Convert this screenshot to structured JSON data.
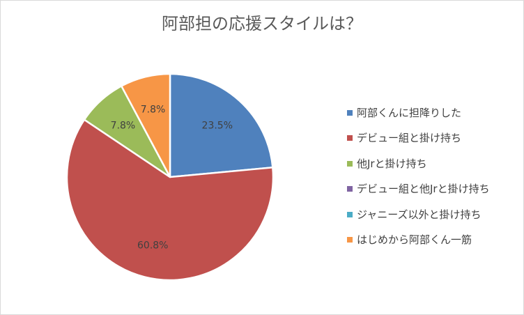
{
  "chart_data": {
    "type": "pie",
    "title": "阿部担の応援スタイルは？",
    "categories": [
      "阿部くんに担降りした",
      "デビュー組と掛け持ち",
      "他Jrと掛け持ち",
      "デビュー組と他Jrと掛け持ち",
      "ジャニーズ以外と掛け持ち",
      "はじめから阿部くん一筋"
    ],
    "values": [
      23.5,
      60.8,
      7.8,
      0,
      0,
      7.8
    ],
    "data_labels": [
      "23.5%",
      "60.8%",
      "7.8%",
      "",
      "",
      "7.8%"
    ],
    "colors": [
      "#4f81bd",
      "#c0504d",
      "#9bbb59",
      "#8064a2",
      "#4bacc6",
      "#f79646"
    ],
    "legend_position": "right",
    "start_angle": "12 o'clock, clockwise"
  }
}
